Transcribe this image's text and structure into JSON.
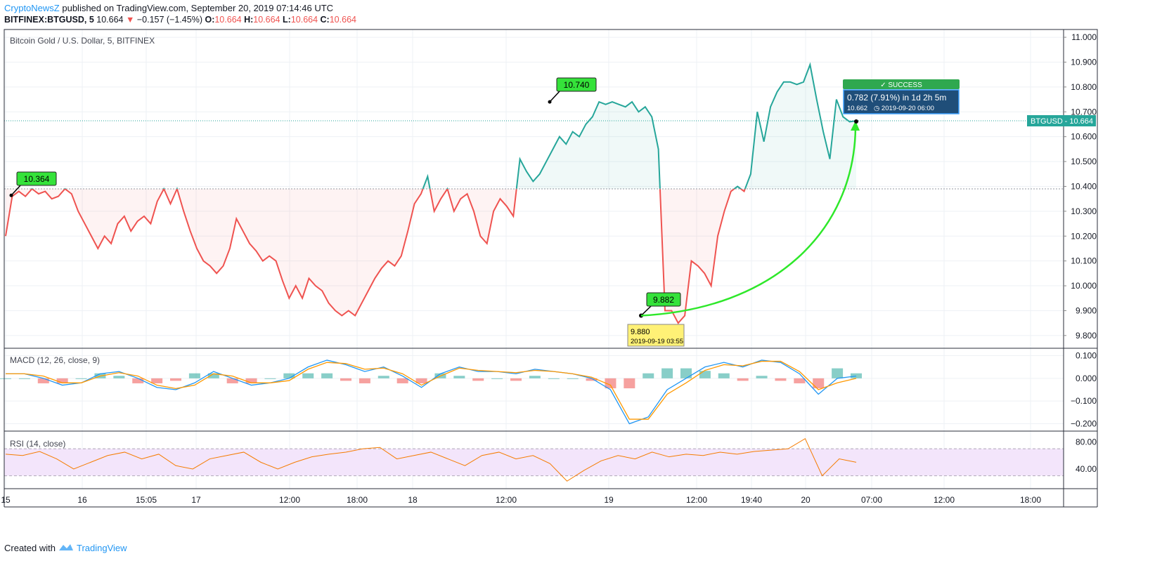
{
  "header": {
    "publisher": "CryptoNewsZ",
    "published_text": " published on TradingView.com, September 20, 2019 07:14:46 UTC",
    "symbol": "BITFINEX:BTGUSD, 5",
    "last": "10.664",
    "change": "−0.157 (−1.45%)",
    "o_label": "O:",
    "o": "10.664",
    "h_label": "H:",
    "h": "10.664",
    "l_label": "L:",
    "l": "10.664",
    "c_label": "C:",
    "c": "10.664"
  },
  "footer": {
    "created_with": "Created with",
    "brand": "TradingView"
  },
  "colors": {
    "up": "#26a69a",
    "down": "#ef5350",
    "grid": "#eef1f5",
    "macd": "#2196f3",
    "signal": "#ff9800",
    "rsi": "#f57c00",
    "rsi_band": "#f3e5fb",
    "success": "#2fa84f",
    "info": "#1f4e79",
    "marker": "#35e23a",
    "low_label": "#fff176"
  },
  "chart_data": [
    {
      "type": "line",
      "title": "Bitcoin Gold / U.S. Dollar, 5, BITFINEX",
      "ylim": [
        9.76,
        11.02
      ],
      "y_ticks": [
        "11.000",
        "10.900",
        "10.800",
        "10.700",
        "10.600",
        "10.500",
        "10.400",
        "10.300",
        "10.200",
        "10.100",
        "10.000",
        "9.900",
        "9.800"
      ],
      "x_ticks": [
        "15",
        "16",
        "15:05",
        "17",
        "12:00",
        "18:00",
        "18",
        "12:00",
        "19",
        "12:00",
        "19:40",
        "20",
        "07:00",
        "12:00",
        "18:00"
      ],
      "baseline": 10.39,
      "series": [
        {
          "values": [
            10.2,
            10.36,
            10.38,
            10.36,
            10.39,
            10.37,
            10.38,
            10.35,
            10.36,
            10.39,
            10.37,
            10.3,
            10.25,
            10.2,
            10.15,
            10.2,
            10.17,
            10.25,
            10.28,
            10.22,
            10.26,
            10.28,
            10.25,
            10.34,
            10.39,
            10.33,
            10.39,
            10.3,
            10.22,
            10.15,
            10.1,
            10.08,
            10.05,
            10.08,
            10.15,
            10.27,
            10.22,
            10.17,
            10.14,
            10.1,
            10.12,
            10.1,
            10.02,
            9.95,
            10.0,
            9.95,
            10.03,
            10.0,
            9.98,
            9.93,
            9.9,
            9.88,
            9.9,
            9.88,
            9.93,
            9.98,
            10.03,
            10.07,
            10.1,
            10.08,
            10.12,
            10.22,
            10.33,
            10.37,
            10.44,
            10.3,
            10.35,
            10.39,
            10.3,
            10.35,
            10.37,
            10.3,
            10.2,
            10.17,
            10.3,
            10.35,
            10.32,
            10.28,
            10.51,
            10.46,
            10.42,
            10.45,
            10.5,
            10.55,
            10.6,
            10.57,
            10.62,
            10.6,
            10.65,
            10.68,
            10.74,
            10.73,
            10.74,
            10.73,
            10.72,
            10.74,
            10.7,
            10.72,
            10.68,
            10.55,
            9.9,
            9.9,
            9.85,
            9.88,
            10.1,
            10.08,
            10.05,
            10.0,
            10.2,
            10.3,
            10.38,
            10.4,
            10.38,
            10.45,
            10.7,
            10.58,
            10.72,
            10.78,
            10.82,
            10.82,
            10.81,
            10.82,
            10.89,
            10.75,
            10.62,
            10.51,
            10.75,
            10.68,
            10.66,
            10.664
          ]
        }
      ],
      "annotations": [
        {
          "label": "10.364"
        },
        {
          "label": "10.740"
        },
        {
          "label": "9.882"
        },
        {
          "label": "9.880",
          "sub": "2019-09-19 03:55"
        },
        {
          "label": "✓ SUCCESS"
        },
        {
          "label": "0.782 (7.91%) in 1d 2h 5m",
          "sub1": "10.662",
          "sub2": "◷ 2019-09-20  06:00"
        }
      ],
      "price_label": "BTGUSD",
      "price_value": "10.664"
    },
    {
      "type": "line",
      "title": "MACD (12, 26, close, 9)",
      "ylim": [
        -0.22,
        0.12
      ],
      "y_ticks": [
        "0.100",
        "0.000",
        "−0.100",
        "−0.200"
      ],
      "series": [
        {
          "values": [
            0.02,
            0.02,
            0.0,
            -0.03,
            -0.02,
            0.02,
            0.03,
            0.0,
            -0.04,
            -0.05,
            -0.02,
            0.03,
            0.0,
            -0.03,
            -0.02,
            0.0,
            0.05,
            0.08,
            0.06,
            0.03,
            0.05,
            0.01,
            -0.04,
            0.02,
            0.05,
            0.03,
            0.03,
            0.02,
            0.04,
            0.03,
            0.02,
            0.0,
            -0.05,
            -0.2,
            -0.17,
            -0.05,
            0.0,
            0.05,
            0.07,
            0.05,
            0.08,
            0.07,
            0.02,
            -0.07,
            0.0,
            0.01
          ]
        },
        {
          "values": [
            0.02,
            0.02,
            0.01,
            -0.02,
            -0.02,
            0.01,
            0.025,
            0.01,
            -0.03,
            -0.045,
            -0.03,
            0.02,
            0.01,
            -0.02,
            -0.02,
            -0.01,
            0.04,
            0.07,
            0.065,
            0.04,
            0.045,
            0.02,
            -0.03,
            0.01,
            0.045,
            0.035,
            0.03,
            0.025,
            0.035,
            0.03,
            0.02,
            0.005,
            -0.03,
            -0.18,
            -0.18,
            -0.07,
            -0.02,
            0.035,
            0.06,
            0.055,
            0.075,
            0.075,
            0.03,
            -0.05,
            -0.02,
            0.0
          ]
        }
      ]
    },
    {
      "type": "line",
      "title": "RSI (14, close)",
      "ylim": [
        15,
        92
      ],
      "y_ticks": [
        "80.00",
        "40.00"
      ],
      "bands": [
        70,
        30
      ],
      "series": [
        {
          "values": [
            62,
            60,
            66,
            55,
            40,
            50,
            60,
            65,
            55,
            62,
            45,
            40,
            55,
            60,
            65,
            50,
            40,
            50,
            58,
            62,
            65,
            70,
            72,
            55,
            60,
            65,
            55,
            45,
            60,
            65,
            55,
            60,
            48,
            22,
            38,
            52,
            60,
            55,
            65,
            58,
            62,
            60,
            65,
            62,
            66,
            68,
            70,
            85,
            30,
            55,
            50
          ]
        }
      ]
    }
  ]
}
